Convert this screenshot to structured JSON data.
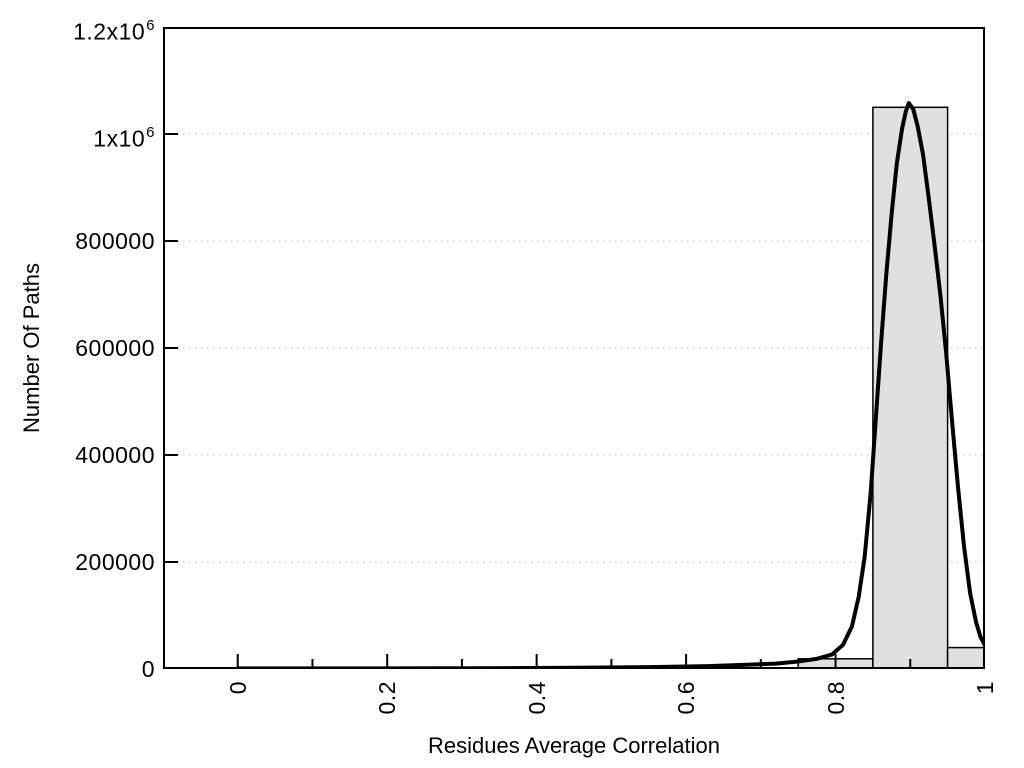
{
  "figure": {
    "background": "#ffffff",
    "axis_color": "#000000",
    "grid_color": "#b9b9b9"
  },
  "chart_data": {
    "type": "bar",
    "subtype": "histogram_with_fitted_curve",
    "title": "",
    "xlabel": "Residues Average Correlation",
    "ylabel": "Number Of Paths",
    "xlim": [
      -0.1,
      1.0
    ],
    "ylim": [
      0,
      1200000
    ],
    "grid": "horizontal dotted lines at y major ticks",
    "legend": "none",
    "x_major_ticks": [
      0,
      0.2,
      0.4,
      0.6,
      0.8,
      1
    ],
    "x_major_tick_labels": [
      "0",
      "0.2",
      "0.4",
      "0.6",
      "0.8",
      "1"
    ],
    "x_minor_ticks": [
      0.1,
      0.3,
      0.5,
      0.7,
      0.9
    ],
    "y_major_ticks": [
      0,
      200000,
      400000,
      600000,
      800000,
      1000000,
      1200000
    ],
    "y_tick_labels": [
      {
        "base": "0"
      },
      {
        "base": "200000"
      },
      {
        "base": "400000"
      },
      {
        "base": "600000"
      },
      {
        "base": "800000"
      },
      {
        "base": "1x10",
        "sup": "6"
      },
      {
        "base": "1.2x10",
        "sup": "6"
      }
    ],
    "bars": {
      "fill": "#e0e0e0",
      "stroke": "#000000",
      "bins": [
        {
          "x0": 0.75,
          "x1": 0.85,
          "count": 19000
        },
        {
          "x0": 0.85,
          "x1": 0.95,
          "count": 1050000
        },
        {
          "x0": 0.95,
          "x1": 1.0,
          "count": 40000
        }
      ]
    },
    "curve": {
      "color": "#000000",
      "stroke_width": 4,
      "points": [
        [
          0.0,
          1200
        ],
        [
          0.18,
          1200
        ],
        [
          0.32,
          1500
        ],
        [
          0.45,
          2200
        ],
        [
          0.55,
          3500
        ],
        [
          0.63,
          5500
        ],
        [
          0.69,
          8500
        ],
        [
          0.72,
          10000
        ],
        [
          0.75,
          14000
        ],
        [
          0.775,
          19000
        ],
        [
          0.795,
          27000
        ],
        [
          0.81,
          45000
        ],
        [
          0.822,
          80000
        ],
        [
          0.831,
          135000
        ],
        [
          0.839,
          210000
        ],
        [
          0.847,
          330000
        ],
        [
          0.854,
          470000
        ],
        [
          0.861,
          610000
        ],
        [
          0.868,
          740000
        ],
        [
          0.875,
          850000
        ],
        [
          0.882,
          945000
        ],
        [
          0.889,
          1010000
        ],
        [
          0.894,
          1042000
        ],
        [
          0.898,
          1058000
        ],
        [
          0.904,
          1046000
        ],
        [
          0.91,
          1014000
        ],
        [
          0.917,
          962000
        ],
        [
          0.924,
          888000
        ],
        [
          0.932,
          798000
        ],
        [
          0.94,
          702000
        ],
        [
          0.948,
          592000
        ],
        [
          0.956,
          462000
        ],
        [
          0.964,
          338000
        ],
        [
          0.972,
          228000
        ],
        [
          0.98,
          142000
        ],
        [
          0.988,
          88000
        ],
        [
          0.994,
          60000
        ],
        [
          1.0,
          44000
        ]
      ]
    }
  }
}
